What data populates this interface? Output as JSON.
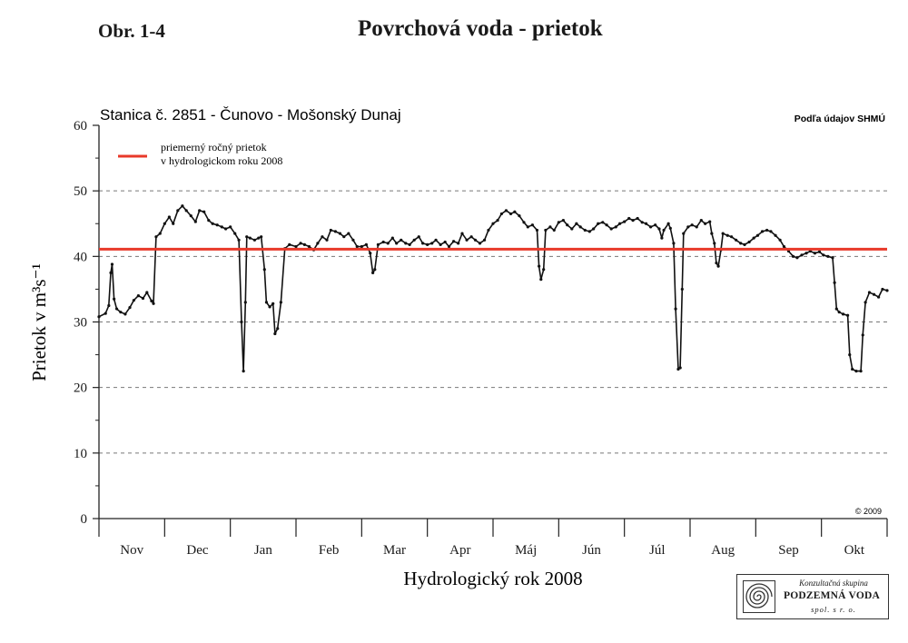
{
  "figure": {
    "label": "Obr. 1-4",
    "title": "Povrchová voda - prietok"
  },
  "chart_data": {
    "type": "line",
    "station": "Stanica č. 2851 - Čunovo - Mošonský Dunaj",
    "source": "Podľa údajov SHMÚ",
    "copyright": "© 2009",
    "xlabel": "Hydrologický rok 2008",
    "ylabel": "Prietok v m³s⁻¹",
    "ylim": [
      0,
      60
    ],
    "yticks": [
      0,
      10,
      20,
      30,
      40,
      50,
      60
    ],
    "grid": "horizontal dashed at 10, 20, 30, 40, 50",
    "categories": [
      "Nov",
      "Dec",
      "Jan",
      "Feb",
      "Mar",
      "Apr",
      "Máj",
      "Jún",
      "Júl",
      "Aug",
      "Sep",
      "Okt"
    ],
    "legend": {
      "position": "top-left",
      "label_line1": "priemerný ročný prietok",
      "label_line2": "v hydrologickom roku 2008"
    },
    "mean_line": {
      "value": 41.1,
      "color": "#e8392a"
    },
    "series": [
      {
        "color": "#111111",
        "points": [
          [
            0,
            30.8
          ],
          [
            0.1,
            31.3
          ],
          [
            0.15,
            32.5
          ],
          [
            0.18,
            37.5
          ],
          [
            0.2,
            38.8
          ],
          [
            0.23,
            33.5
          ],
          [
            0.27,
            32
          ],
          [
            0.33,
            31.5
          ],
          [
            0.4,
            31.2
          ],
          [
            0.47,
            32.2
          ],
          [
            0.53,
            33.3
          ],
          [
            0.6,
            34
          ],
          [
            0.67,
            33.6
          ],
          [
            0.73,
            34.5
          ],
          [
            0.8,
            33.2
          ],
          [
            0.83,
            32.8
          ],
          [
            0.87,
            43
          ],
          [
            0.93,
            43.5
          ],
          [
            1,
            45
          ],
          [
            1.07,
            46
          ],
          [
            1.13,
            45
          ],
          [
            1.2,
            47
          ],
          [
            1.27,
            47.7
          ],
          [
            1.33,
            47
          ],
          [
            1.4,
            46.2
          ],
          [
            1.47,
            45.3
          ],
          [
            1.53,
            47
          ],
          [
            1.6,
            46.8
          ],
          [
            1.67,
            45.5
          ],
          [
            1.73,
            45
          ],
          [
            1.8,
            44.8
          ],
          [
            1.87,
            44.5
          ],
          [
            1.93,
            44.2
          ],
          [
            2,
            44.5
          ],
          [
            2.07,
            43.5
          ],
          [
            2.13,
            42.5
          ],
          [
            2.17,
            30
          ],
          [
            2.2,
            22.5
          ],
          [
            2.23,
            33
          ],
          [
            2.25,
            43
          ],
          [
            2.3,
            42.8
          ],
          [
            2.37,
            42.5
          ],
          [
            2.43,
            42.8
          ],
          [
            2.47,
            43
          ],
          [
            2.52,
            38
          ],
          [
            2.55,
            33
          ],
          [
            2.6,
            32.3
          ],
          [
            2.65,
            32.8
          ],
          [
            2.68,
            28.2
          ],
          [
            2.72,
            29
          ],
          [
            2.77,
            33
          ],
          [
            2.83,
            41.2
          ],
          [
            2.9,
            41.8
          ],
          [
            3,
            41.5
          ],
          [
            3.07,
            42
          ],
          [
            3.13,
            41.8
          ],
          [
            3.2,
            41.5
          ],
          [
            3.27,
            41
          ],
          [
            3.33,
            42
          ],
          [
            3.4,
            43
          ],
          [
            3.47,
            42.5
          ],
          [
            3.53,
            44
          ],
          [
            3.6,
            43.8
          ],
          [
            3.67,
            43.5
          ],
          [
            3.73,
            43
          ],
          [
            3.8,
            43.5
          ],
          [
            3.87,
            42.5
          ],
          [
            3.93,
            41.5
          ],
          [
            4,
            41.5
          ],
          [
            4.07,
            41.8
          ],
          [
            4.13,
            40.5
          ],
          [
            4.17,
            37.5
          ],
          [
            4.2,
            38
          ],
          [
            4.25,
            41.8
          ],
          [
            4.33,
            42.2
          ],
          [
            4.4,
            42
          ],
          [
            4.47,
            42.8
          ],
          [
            4.53,
            42
          ],
          [
            4.6,
            42.5
          ],
          [
            4.67,
            42
          ],
          [
            4.73,
            41.8
          ],
          [
            4.8,
            42.5
          ],
          [
            4.87,
            43
          ],
          [
            4.93,
            42
          ],
          [
            5,
            41.8
          ],
          [
            5.07,
            42
          ],
          [
            5.13,
            42.5
          ],
          [
            5.2,
            41.8
          ],
          [
            5.27,
            42.2
          ],
          [
            5.33,
            41.5
          ],
          [
            5.4,
            42.3
          ],
          [
            5.47,
            42
          ],
          [
            5.53,
            43.5
          ],
          [
            5.6,
            42.5
          ],
          [
            5.67,
            43
          ],
          [
            5.73,
            42.5
          ],
          [
            5.8,
            42
          ],
          [
            5.87,
            42.5
          ],
          [
            5.93,
            44
          ],
          [
            6,
            45
          ],
          [
            6.07,
            45.5
          ],
          [
            6.13,
            46.5
          ],
          [
            6.2,
            47
          ],
          [
            6.27,
            46.5
          ],
          [
            6.33,
            46.8
          ],
          [
            6.4,
            46.2
          ],
          [
            6.47,
            45.2
          ],
          [
            6.53,
            44.5
          ],
          [
            6.6,
            44.8
          ],
          [
            6.67,
            44
          ],
          [
            6.7,
            38.5
          ],
          [
            6.73,
            36.5
          ],
          [
            6.77,
            38
          ],
          [
            6.8,
            44
          ],
          [
            6.87,
            44.5
          ],
          [
            6.93,
            44
          ],
          [
            7,
            45.2
          ],
          [
            7.07,
            45.5
          ],
          [
            7.13,
            44.8
          ],
          [
            7.2,
            44.2
          ],
          [
            7.27,
            45
          ],
          [
            7.33,
            44.5
          ],
          [
            7.4,
            44
          ],
          [
            7.47,
            43.8
          ],
          [
            7.53,
            44.2
          ],
          [
            7.6,
            45
          ],
          [
            7.67,
            45.2
          ],
          [
            7.73,
            44.8
          ],
          [
            7.8,
            44.2
          ],
          [
            7.87,
            44.5
          ],
          [
            7.93,
            45
          ],
          [
            8,
            45.3
          ],
          [
            8.07,
            45.8
          ],
          [
            8.13,
            45.5
          ],
          [
            8.2,
            45.8
          ],
          [
            8.27,
            45.2
          ],
          [
            8.33,
            45
          ],
          [
            8.4,
            44.5
          ],
          [
            8.47,
            44.8
          ],
          [
            8.53,
            44.2
          ],
          [
            8.57,
            42.8
          ],
          [
            8.6,
            44
          ],
          [
            8.67,
            45
          ],
          [
            8.7,
            44.3
          ],
          [
            8.75,
            42
          ],
          [
            8.78,
            32
          ],
          [
            8.82,
            22.8
          ],
          [
            8.85,
            23
          ],
          [
            8.88,
            35
          ],
          [
            8.9,
            43.5
          ],
          [
            8.97,
            44.5
          ],
          [
            9.03,
            44.8
          ],
          [
            9.1,
            44.5
          ],
          [
            9.17,
            45.5
          ],
          [
            9.23,
            45
          ],
          [
            9.3,
            45.3
          ],
          [
            9.33,
            43.5
          ],
          [
            9.37,
            42
          ],
          [
            9.4,
            39
          ],
          [
            9.43,
            38.5
          ],
          [
            9.47,
            41
          ],
          [
            9.5,
            43.5
          ],
          [
            9.57,
            43.2
          ],
          [
            9.63,
            43
          ],
          [
            9.7,
            42.5
          ],
          [
            9.77,
            42
          ],
          [
            9.83,
            41.8
          ],
          [
            9.9,
            42.2
          ],
          [
            9.97,
            42.8
          ],
          [
            10.03,
            43.2
          ],
          [
            10.1,
            43.8
          ],
          [
            10.17,
            44
          ],
          [
            10.23,
            43.8
          ],
          [
            10.3,
            43.2
          ],
          [
            10.37,
            42.5
          ],
          [
            10.43,
            41.5
          ],
          [
            10.5,
            40.8
          ],
          [
            10.57,
            40
          ],
          [
            10.63,
            39.8
          ],
          [
            10.7,
            40.2
          ],
          [
            10.77,
            40.5
          ],
          [
            10.83,
            40.8
          ],
          [
            10.9,
            40.5
          ],
          [
            10.97,
            40.7
          ],
          [
            11.03,
            40.2
          ],
          [
            11.1,
            40
          ],
          [
            11.17,
            39.8
          ],
          [
            11.2,
            36
          ],
          [
            11.23,
            32
          ],
          [
            11.27,
            31.5
          ],
          [
            11.33,
            31.2
          ],
          [
            11.4,
            31
          ],
          [
            11.43,
            25
          ],
          [
            11.47,
            22.8
          ],
          [
            11.53,
            22.5
          ],
          [
            11.6,
            22.5
          ],
          [
            11.63,
            28
          ],
          [
            11.67,
            33
          ],
          [
            11.73,
            34.5
          ],
          [
            11.8,
            34.2
          ],
          [
            11.87,
            33.8
          ],
          [
            11.93,
            35
          ],
          [
            12,
            34.8
          ]
        ]
      }
    ]
  },
  "logo": {
    "line1": "Konzultačná skupina",
    "name": "PODZEMNÁ VODA",
    "line3": "spol. s r. o."
  }
}
